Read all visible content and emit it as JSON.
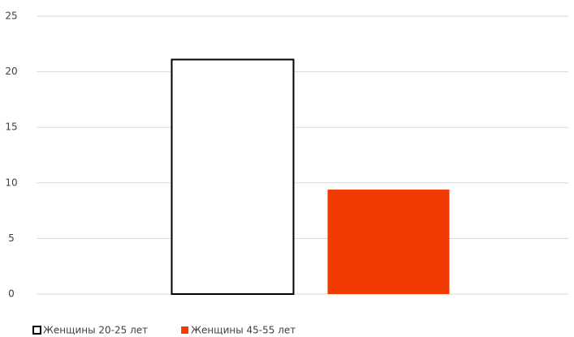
{
  "chart_data": {
    "type": "bar",
    "categories": [
      null
    ],
    "series": [
      {
        "name": "Женщины 20-25 лет",
        "color": "#ffffff",
        "edgecolor": "#000000",
        "values": [
          21.1
        ]
      },
      {
        "name": "Женщины 45-55 лет",
        "color": "#f03c02",
        "values": [
          9.4
        ]
      }
    ],
    "ylim": [
      0,
      25
    ],
    "yticks": [
      0,
      5,
      10,
      15,
      20,
      25
    ],
    "grid": true,
    "legend": "bottom-left"
  }
}
